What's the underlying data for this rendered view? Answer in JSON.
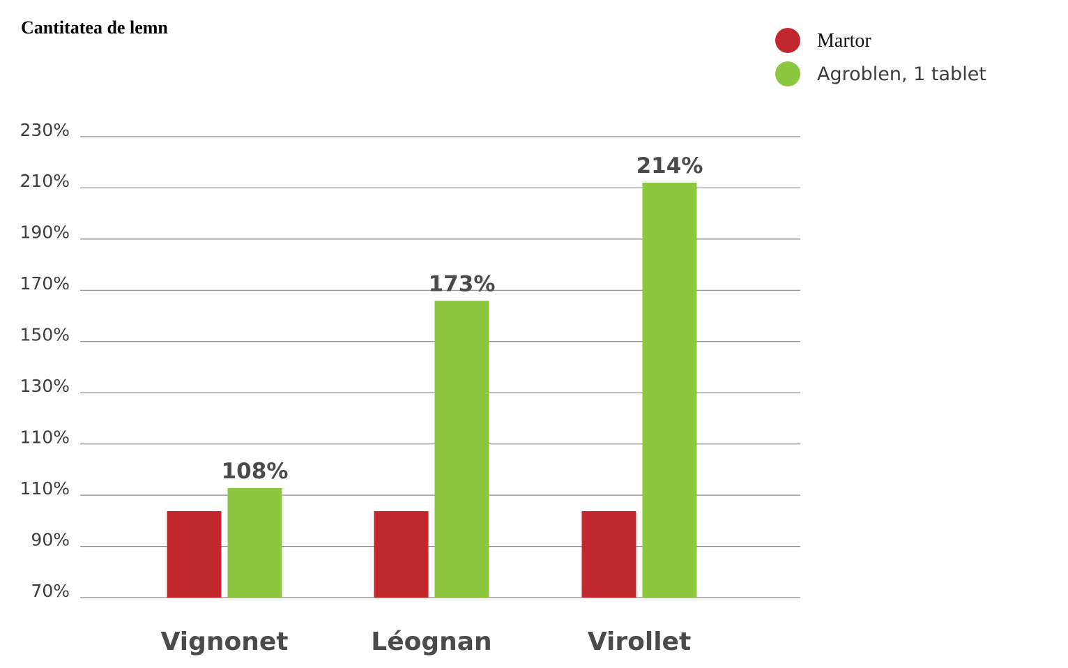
{
  "chart_data": {
    "type": "bar",
    "title": "Cantitatea de lemn",
    "xlabel": "",
    "ylabel": "",
    "categories": [
      "Vignonet",
      "Léognan",
      "Virollet"
    ],
    "series": [
      {
        "name": "Martor",
        "color": "#c1272d",
        "values": [
          100,
          100,
          100
        ],
        "labels": [
          "",
          "",
          ""
        ]
      },
      {
        "name": "Agroblen, 1 tablet",
        "color": "#8dc63f",
        "values": [
          108,
          173,
          214
        ],
        "labels": [
          "108%",
          "173%",
          "214%"
        ]
      }
    ],
    "yticks": [
      "70%",
      "90%",
      "110%",
      "110%",
      "130%",
      "150%",
      "170%",
      "190%",
      "210%",
      "230%"
    ],
    "ylim": [
      70,
      230
    ],
    "grid": true,
    "legend": "top-right"
  }
}
